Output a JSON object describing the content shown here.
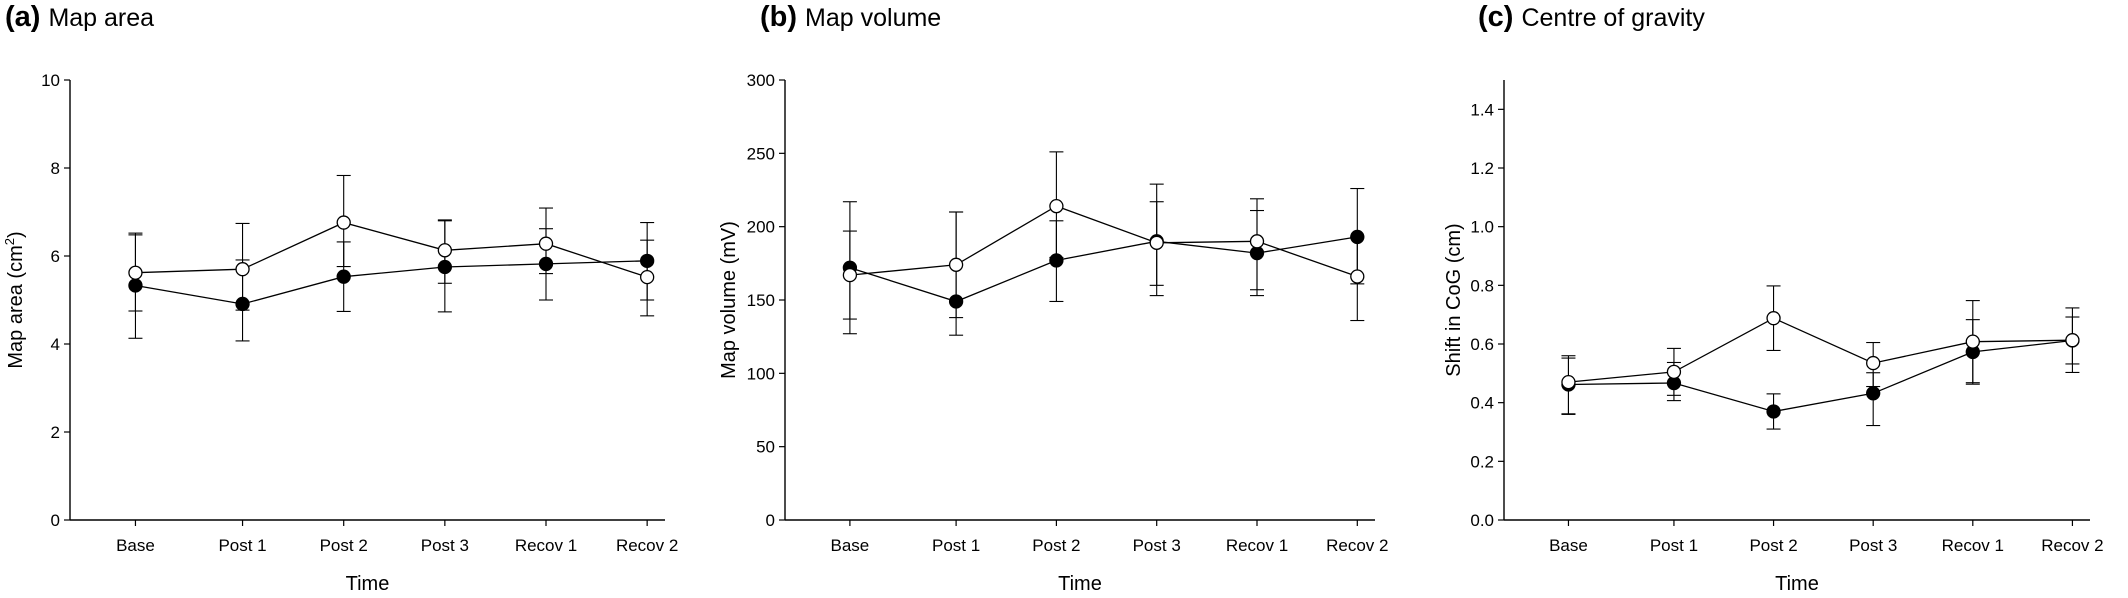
{
  "chart_data": [
    {
      "type": "line",
      "panel_letter": "(a)",
      "title": "Map area",
      "xlabel": "Time",
      "ylabel": "Map area (cm",
      "ylabel_sup": "2",
      "ylabel_end": ")",
      "categories": [
        "Base",
        "Post 1",
        "Post 2",
        "Post 3",
        "Recov 1",
        "Recov 2"
      ],
      "ylim": [
        0,
        10
      ],
      "yticks": [
        "0",
        "2",
        "4",
        "6",
        "8",
        "10"
      ],
      "yticks_values": [
        0,
        2,
        4,
        6,
        8,
        10
      ],
      "series": [
        {
          "marker": "filled",
          "values": [
            5.33,
            4.91,
            5.53,
            5.75,
            5.82,
            5.89
          ],
          "err_lower": [
            1.2,
            0.84,
            0.79,
            1.02,
            0.82,
            0.89
          ],
          "err_upper": [
            1.15,
            1.0,
            0.79,
            1.05,
            0.8,
            0.87
          ]
        },
        {
          "marker": "open",
          "values": [
            5.62,
            5.7,
            6.76,
            6.13,
            6.28,
            5.52
          ],
          "err_lower": [
            0.87,
            0.93,
            1.0,
            0.75,
            0.68,
            0.88
          ],
          "err_upper": [
            0.9,
            1.04,
            1.07,
            0.69,
            0.81,
            0.84
          ]
        }
      ]
    },
    {
      "type": "line",
      "panel_letter": "(b)",
      "title": "Map volume",
      "xlabel": "Time",
      "ylabel": "Map volume (mV)",
      "categories": [
        "Base",
        "Post 1",
        "Post 2",
        "Post 3",
        "Recov 1",
        "Recov 2"
      ],
      "ylim": [
        0,
        300
      ],
      "yticks": [
        "0",
        "50",
        "100",
        "150",
        "200",
        "250",
        "300"
      ],
      "yticks_values": [
        0,
        50,
        100,
        150,
        200,
        250,
        300
      ],
      "series": [
        {
          "marker": "filled",
          "values": [
            172,
            149,
            177,
            190,
            182,
            193
          ],
          "err_lower": [
            45,
            23,
            28,
            37,
            29,
            32
          ],
          "err_upper": [
            45,
            61,
            27,
            39,
            29,
            33
          ]
        },
        {
          "marker": "open",
          "values": [
            167,
            174,
            214,
            189,
            190,
            166
          ],
          "err_lower": [
            30,
            36,
            35,
            29,
            33,
            30
          ],
          "err_upper": [
            30,
            36,
            37,
            28,
            29,
            27
          ]
        }
      ]
    },
    {
      "type": "line",
      "panel_letter": "(c)",
      "title": "Centre of gravity",
      "xlabel": "Time",
      "ylabel": "Shift in CoG (cm)",
      "categories": [
        "Base",
        "Post 1",
        "Post 2",
        "Post 3",
        "Recov 1",
        "Recov 2"
      ],
      "ylim": [
        0,
        1.5
      ],
      "yticks": [
        "0.0",
        "0.2",
        "0.4",
        "0.6",
        "0.8",
        "1.0",
        "1.2",
        "1.4"
      ],
      "yticks_values": [
        0,
        0.2,
        0.4,
        0.6,
        0.8,
        1.0,
        1.2,
        1.4
      ],
      "series": [
        {
          "marker": "filled",
          "values": [
            0.462,
            0.467,
            0.37,
            0.432,
            0.573,
            0.612
          ],
          "err_lower": [
            0.1,
            0.06,
            0.06,
            0.11,
            0.11,
            0.08
          ],
          "err_upper": [
            0.09,
            0.07,
            0.06,
            0.07,
            0.11,
            0.08
          ]
        },
        {
          "marker": "open",
          "values": [
            0.47,
            0.505,
            0.688,
            0.535,
            0.608,
            0.613
          ],
          "err_lower": [
            0.11,
            0.08,
            0.11,
            0.08,
            0.14,
            0.11
          ],
          "err_upper": [
            0.09,
            0.08,
            0.11,
            0.07,
            0.14,
            0.11
          ]
        }
      ]
    }
  ]
}
